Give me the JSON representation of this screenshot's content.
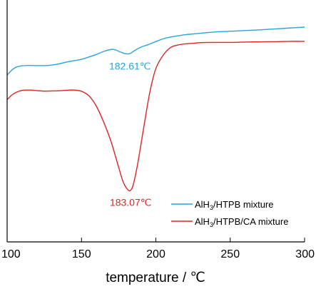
{
  "chart_data": {
    "type": "line",
    "title": "",
    "xlabel": "temperature / ℃",
    "ylabel": "",
    "xlim": [
      100,
      300
    ],
    "ylim": [
      0,
      1
    ],
    "xticks": [
      100,
      150,
      200,
      250,
      300
    ],
    "grid": false,
    "legend": "bottom-right",
    "series": [
      {
        "name_main": "AlH",
        "name_sub": "3",
        "name_rest": "/HTPB mixture",
        "color": "#29a3e0",
        "x": [
          100,
          103,
          106,
          110,
          115,
          120,
          125,
          130,
          135,
          140,
          145,
          150,
          155,
          160,
          165,
          170,
          173,
          176,
          179,
          181,
          182.61,
          184,
          186,
          190,
          195,
          200,
          205,
          210,
          215,
          220,
          225,
          230,
          240,
          250,
          260,
          270,
          280,
          290,
          300
        ],
        "y": [
          0.733,
          0.76,
          0.777,
          0.785,
          0.787,
          0.786,
          0.786,
          0.789,
          0.796,
          0.806,
          0.813,
          0.821,
          0.834,
          0.848,
          0.865,
          0.876,
          0.873,
          0.862,
          0.853,
          0.851,
          0.853,
          0.86,
          0.871,
          0.889,
          0.903,
          0.92,
          0.935,
          0.945,
          0.952,
          0.958,
          0.962,
          0.966,
          0.973,
          0.977,
          0.981,
          0.985,
          0.99,
          0.995,
          1.0
        ]
      },
      {
        "name_main": "AlH",
        "name_sub": "3",
        "name_rest": "/HTPB/CA mixture",
        "color": "#e02424",
        "x": [
          100,
          103,
          106,
          110,
          115,
          120,
          125,
          130,
          135,
          140,
          145,
          150,
          155,
          160,
          165,
          170,
          175,
          178,
          181,
          183.07,
          185,
          188,
          192,
          196,
          200,
          205,
          210,
          215,
          220,
          225,
          230,
          240,
          250,
          260,
          270,
          280,
          290,
          300
        ],
        "y": [
          0.597,
          0.621,
          0.637,
          0.648,
          0.65,
          0.647,
          0.644,
          0.645,
          0.646,
          0.649,
          0.65,
          0.643,
          0.618,
          0.56,
          0.47,
          0.36,
          0.22,
          0.14,
          0.097,
          0.093,
          0.13,
          0.25,
          0.45,
          0.64,
          0.77,
          0.845,
          0.887,
          0.901,
          0.907,
          0.91,
          0.914,
          0.915,
          0.915,
          0.917,
          0.918,
          0.919,
          0.921,
          0.921
        ]
      }
    ],
    "annotations": [
      {
        "text": "182.61℃",
        "x": 182.61,
        "y": 0.851,
        "color": "#29a3e0"
      },
      {
        "text": "183.07℃",
        "x": 183.07,
        "y": 0.093,
        "color": "#e02424"
      }
    ]
  }
}
